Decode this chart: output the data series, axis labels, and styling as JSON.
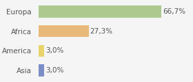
{
  "categories": [
    "Europa",
    "Africa",
    "America",
    "Asia"
  ],
  "values": [
    66.7,
    27.3,
    3.0,
    3.0
  ],
  "labels": [
    "66,7%",
    "27,3%",
    "3,0%",
    "3,0%"
  ],
  "bar_colors": [
    "#adc990",
    "#e8b97a",
    "#e8d46a",
    "#7b8fc7"
  ],
  "background_color": "#f5f5f5",
  "xlim": [
    0,
    83
  ],
  "label_fontsize": 7.5,
  "tick_fontsize": 7.5
}
